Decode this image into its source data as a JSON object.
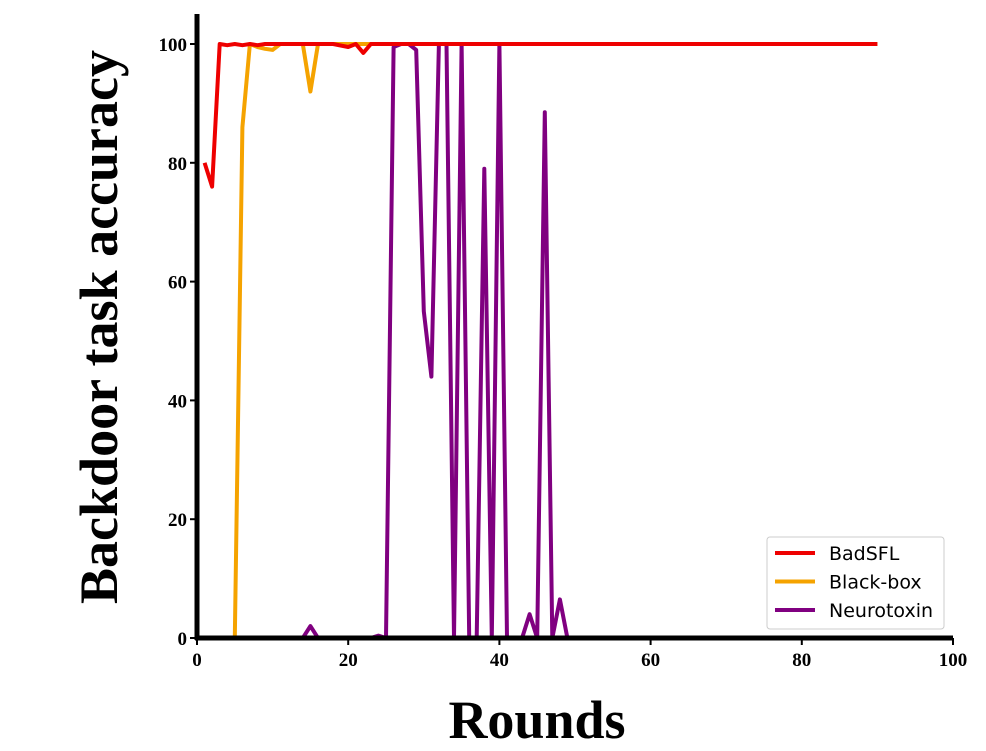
{
  "chart_data": {
    "type": "line",
    "title": "",
    "xlabel": "Rounds",
    "ylabel": "Backdoor task accuracy",
    "xlim": [
      0,
      100
    ],
    "ylim": [
      0,
      105
    ],
    "xticks": [
      0,
      20,
      40,
      60,
      80,
      100
    ],
    "yticks": [
      0,
      20,
      40,
      60,
      80,
      100
    ],
    "grid": false,
    "legend_position": "bottom-right",
    "series": [
      {
        "name": "BadSFL",
        "color": "#ee0000",
        "x": [
          1,
          2,
          3,
          4,
          5,
          6,
          7,
          8,
          9,
          10,
          12,
          14,
          16,
          18,
          20,
          21,
          22,
          23,
          24,
          26,
          28,
          30,
          32,
          34,
          36,
          38,
          40,
          45,
          50,
          55,
          60,
          65,
          70,
          75,
          80,
          85,
          90
        ],
        "y": [
          80,
          76,
          100,
          99.8,
          100,
          99.8,
          100,
          99.8,
          100,
          100,
          100,
          100,
          100,
          100,
          99.5,
          100,
          98.5,
          100,
          100,
          100,
          100,
          100,
          100,
          100,
          100,
          100,
          100,
          100,
          100,
          100,
          100,
          100,
          100,
          100,
          100,
          100,
          100
        ]
      },
      {
        "name": "Black-box",
        "color": "#f5a300",
        "x": [
          5,
          6,
          7,
          8,
          9,
          10,
          11,
          12,
          13,
          14,
          15,
          16,
          17,
          18,
          20,
          22,
          24,
          26,
          28,
          30,
          35,
          40,
          50,
          60,
          70,
          80,
          90
        ],
        "y": [
          0,
          86,
          100,
          99.5,
          99.2,
          99,
          100,
          100,
          100,
          100,
          92,
          100,
          100,
          100,
          100,
          100,
          100,
          100,
          100,
          100,
          100,
          100,
          100,
          100,
          100,
          100,
          100
        ]
      },
      {
        "name": "Neurotoxin",
        "color": "#800080",
        "x": [
          14,
          15,
          16,
          23,
          24,
          25,
          26,
          27,
          28,
          29,
          30,
          31,
          32,
          33,
          34,
          35,
          36,
          37,
          38,
          39,
          40,
          41,
          43,
          44,
          45,
          46,
          47,
          48,
          49
        ],
        "y": [
          0,
          2,
          0,
          0,
          0.4,
          0,
          99.5,
          100,
          100,
          99,
          55,
          44,
          100,
          100,
          0,
          100,
          0,
          0,
          79,
          0,
          100,
          0,
          0,
          4,
          0,
          88.5,
          0,
          6.5,
          0
        ]
      }
    ]
  }
}
